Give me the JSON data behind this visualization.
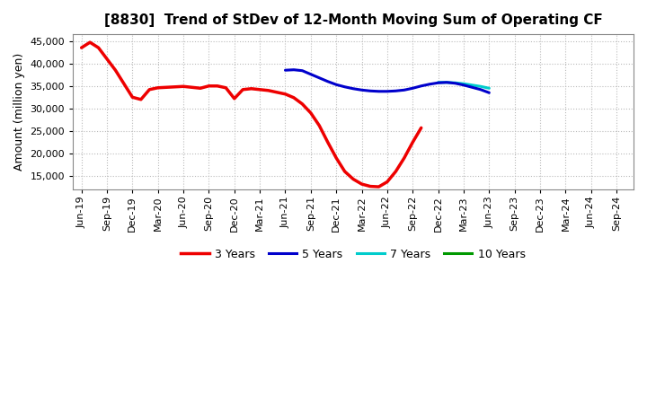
{
  "title": "[8830]  Trend of StDev of 12-Month Moving Sum of Operating CF",
  "ylabel": "Amount (million yen)",
  "background_color": "#ffffff",
  "plot_bg_color": "#ffffff",
  "grid_color": "#bbbbbb",
  "yticks": [
    15000,
    20000,
    25000,
    30000,
    35000,
    40000,
    45000
  ],
  "series": {
    "3yr": {
      "color": "#ee0000",
      "label": "3 Years",
      "x": [
        0,
        1,
        2,
        3,
        4,
        5,
        6,
        7,
        8,
        9,
        10,
        11,
        12,
        13,
        14,
        15,
        16,
        17,
        18,
        19,
        20,
        21,
        22,
        23,
        24,
        25,
        26,
        27,
        28,
        29,
        30,
        31,
        32,
        33,
        34,
        35,
        36,
        37,
        38,
        39,
        40,
        41,
        42,
        43,
        44,
        45,
        46,
        47,
        48
      ],
      "y": [
        43500,
        44700,
        43500,
        41000,
        38500,
        35500,
        32500,
        32000,
        34200,
        34600,
        34700,
        34800,
        34900,
        34700,
        34500,
        35000,
        35000,
        34600,
        32200,
        34200,
        34400,
        34200,
        34000,
        33600,
        33200,
        32400,
        31000,
        29000,
        26200,
        22500,
        19000,
        16000,
        14300,
        13200,
        12700,
        12600,
        13700,
        16000,
        19000,
        22500,
        25700,
        null,
        null,
        null,
        null,
        null,
        null,
        null,
        null
      ]
    },
    "5yr": {
      "color": "#0000cc",
      "label": "5 Years",
      "x": [
        24,
        25,
        26,
        27,
        28,
        29,
        30,
        31,
        32,
        33,
        34,
        35,
        36,
        37,
        38,
        39,
        40,
        41,
        42,
        43,
        44,
        45,
        46,
        47,
        48
      ],
      "y": [
        38500,
        38600,
        38400,
        37600,
        36800,
        36000,
        35300,
        34800,
        34400,
        34100,
        33900,
        33800,
        33800,
        33900,
        34100,
        34500,
        35000,
        35400,
        35700,
        35800,
        35600,
        35200,
        34700,
        34200,
        33500
      ]
    },
    "7yr": {
      "color": "#00cccc",
      "label": "7 Years",
      "x": [
        42,
        43,
        44,
        45,
        46,
        47,
        48
      ],
      "y": [
        35800,
        35800,
        35700,
        35500,
        35200,
        34900,
        34500
      ]
    },
    "10yr": {
      "color": "#009900",
      "label": "10 Years",
      "x": [],
      "y": []
    }
  },
  "xtick_labels": [
    "Jun-19",
    "Sep-19",
    "Dec-19",
    "Mar-20",
    "Jun-20",
    "Sep-20",
    "Dec-20",
    "Mar-21",
    "Jun-21",
    "Sep-21",
    "Dec-21",
    "Mar-22",
    "Jun-22",
    "Sep-22",
    "Dec-22",
    "Mar-23",
    "Jun-23",
    "Sep-23",
    "Dec-23",
    "Mar-24",
    "Jun-24",
    "Sep-24"
  ],
  "xtick_positions": [
    0,
    3,
    6,
    9,
    12,
    15,
    18,
    21,
    24,
    27,
    30,
    33,
    36,
    39,
    42,
    45,
    48,
    51,
    54,
    57,
    60,
    63
  ],
  "xlim": [
    -1,
    65
  ]
}
